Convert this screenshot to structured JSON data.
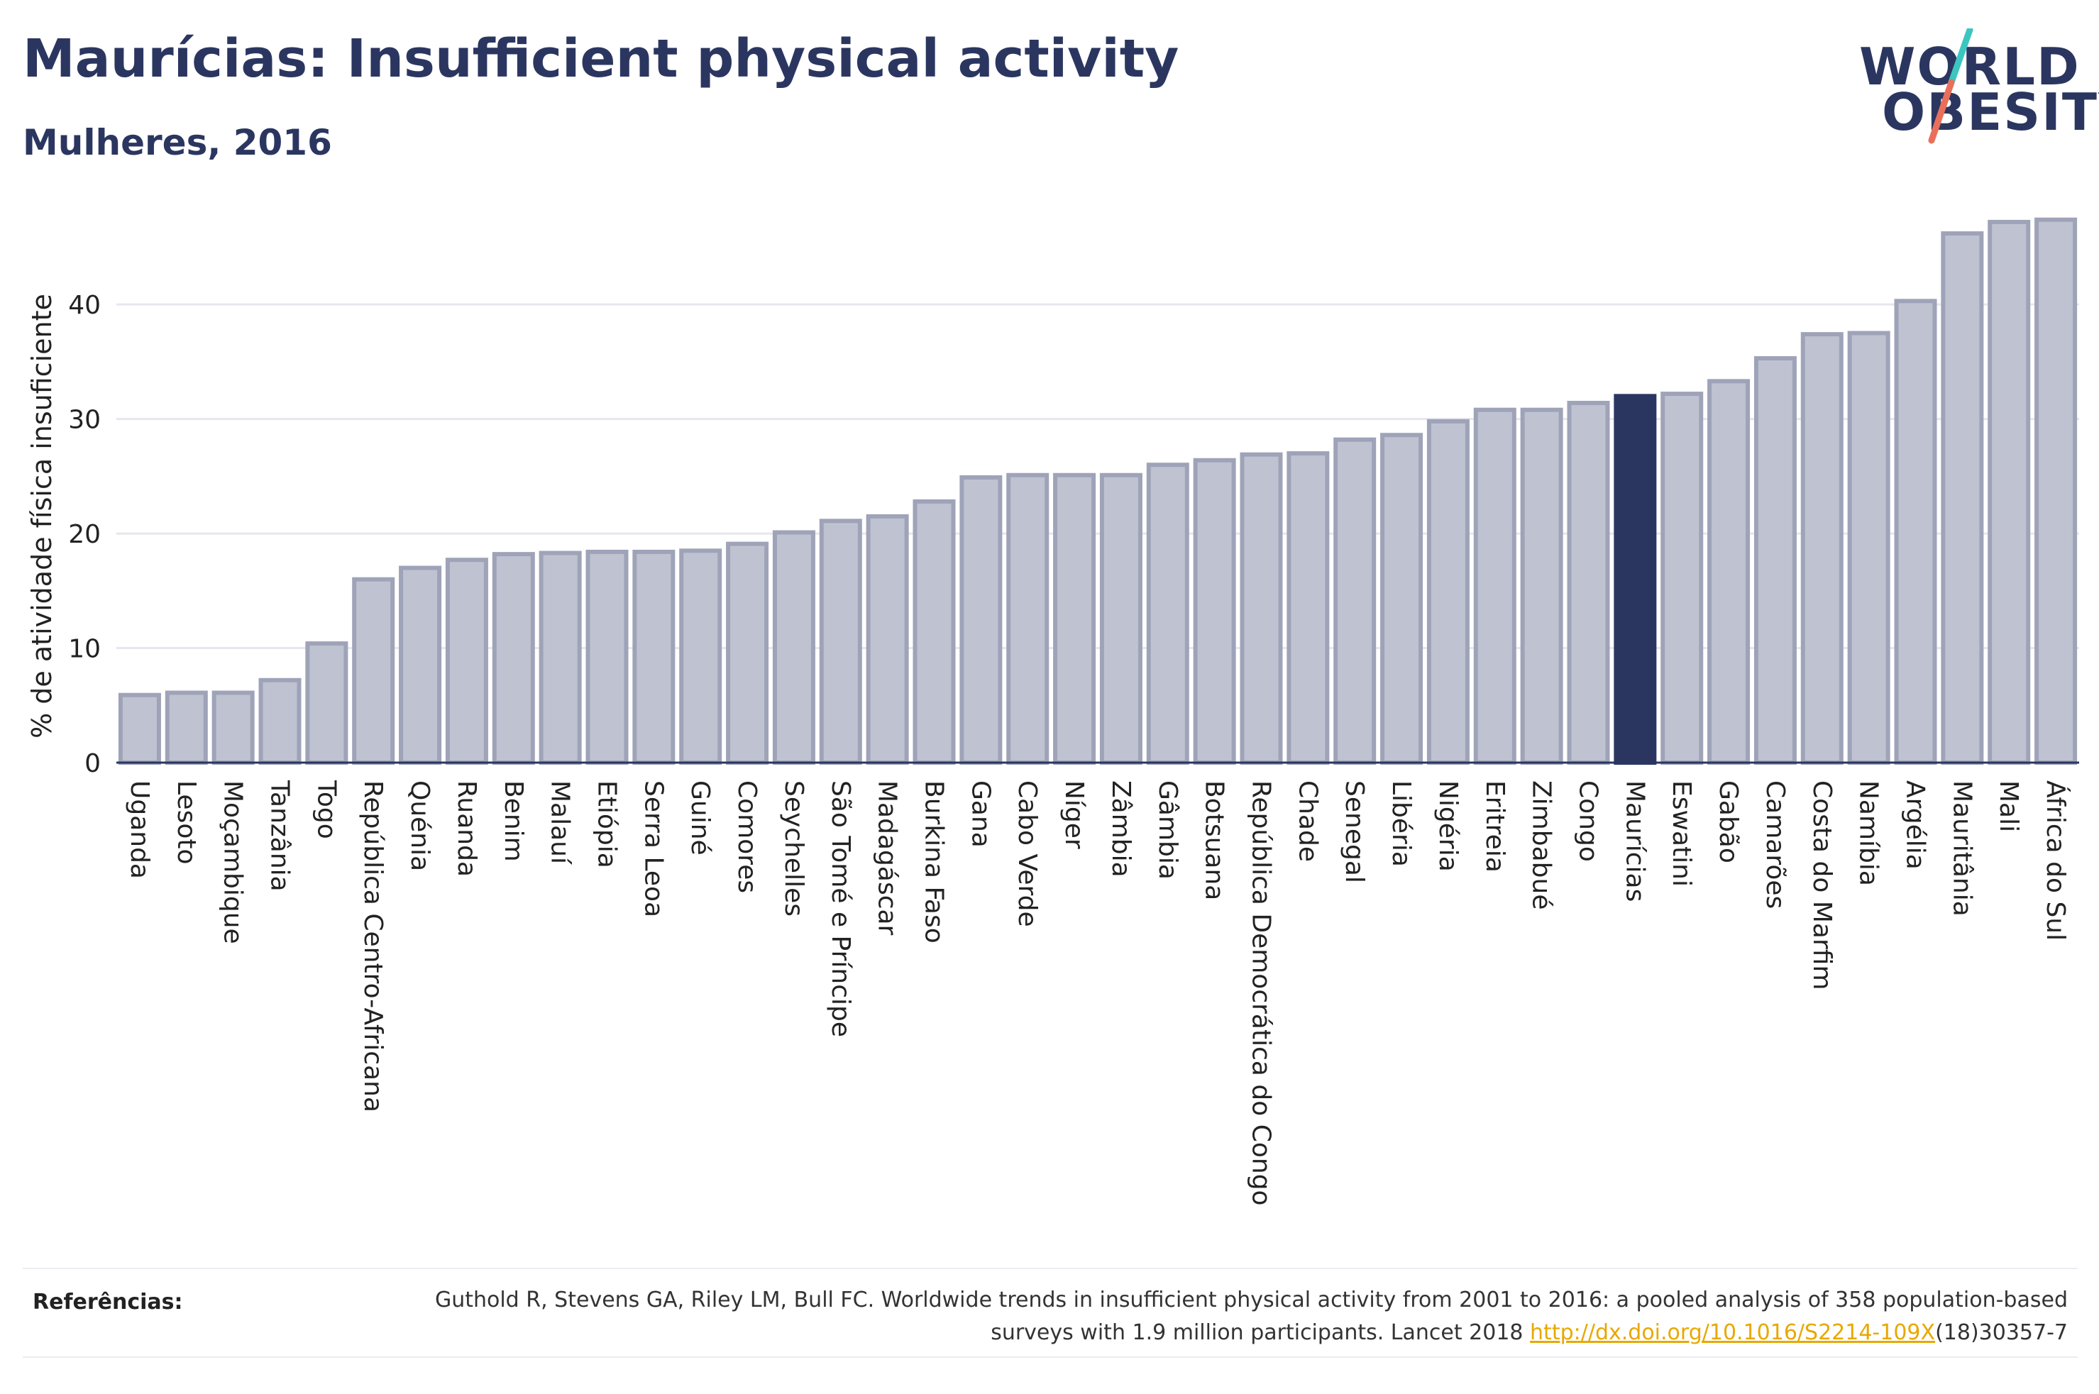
{
  "header": {
    "title": "Maurícias: Insufficient physical activity",
    "subtitle": "Mulheres, 2016"
  },
  "logo": {
    "line1": "WORLD",
    "line2": "OBESITY",
    "accent_colors": [
      "#3cc6c0",
      "#e8705a"
    ]
  },
  "chart_data": {
    "type": "bar",
    "ylabel": "% de atividade física insuficiente",
    "ylim": [
      0,
      48
    ],
    "yticks": [
      0,
      10,
      20,
      30,
      40
    ],
    "grid": true,
    "highlight": "Maurícias",
    "colors": {
      "bar": "#bfc3d1",
      "bar_border": "#9ea3b8",
      "highlight": "#2b3660"
    },
    "categories": [
      "Uganda",
      "Lesoto",
      "Moçambique",
      "Tanzânia",
      "Togo",
      "República Centro-Africana",
      "Quénia",
      "Ruanda",
      "Benim",
      "Malauí",
      "Etiópia",
      "Serra Leoa",
      "Guiné",
      "Comores",
      "Seychelles",
      "São Tomé e Príncipe",
      "Madagáscar",
      "Burkina Faso",
      "Gana",
      "Cabo Verde",
      "Níger",
      "Zâmbia",
      "Gâmbia",
      "Botsuana",
      "República Democrática do Congo",
      "Chade",
      "Senegal",
      "Libéria",
      "Nigéria",
      "Eritreia",
      "Zimbabué",
      "Congo",
      "Maurícias",
      "Eswatini",
      "Gabão",
      "Camarões",
      "Costa do Marfim",
      "Namíbia",
      "Argélia",
      "Mauritânia",
      "Mali",
      "África do Sul"
    ],
    "values": [
      5.9,
      6.1,
      6.1,
      7.2,
      10.4,
      16.0,
      17.0,
      17.7,
      18.2,
      18.3,
      18.4,
      18.4,
      18.5,
      19.1,
      20.1,
      21.1,
      21.5,
      22.8,
      24.9,
      25.1,
      25.1,
      25.1,
      26.0,
      26.4,
      26.9,
      27.0,
      28.2,
      28.6,
      29.8,
      30.8,
      30.8,
      31.4,
      32.0,
      32.2,
      33.3,
      35.3,
      37.4,
      37.5,
      40.3,
      46.2,
      47.2,
      47.4
    ]
  },
  "references": {
    "label": "Referências:",
    "text_part1": "Guthold R, Stevens GA, Riley LM, Bull FC. Worldwide trends in insufficient physical activity from 2001 to 2016: a pooled analysis of 358 population-based surveys with 1.9 million participants. Lancet 2018 ",
    "link": "http://dx.doi.org/10.1016/S2214-109X",
    "text_part2": "(18)30357-7"
  }
}
